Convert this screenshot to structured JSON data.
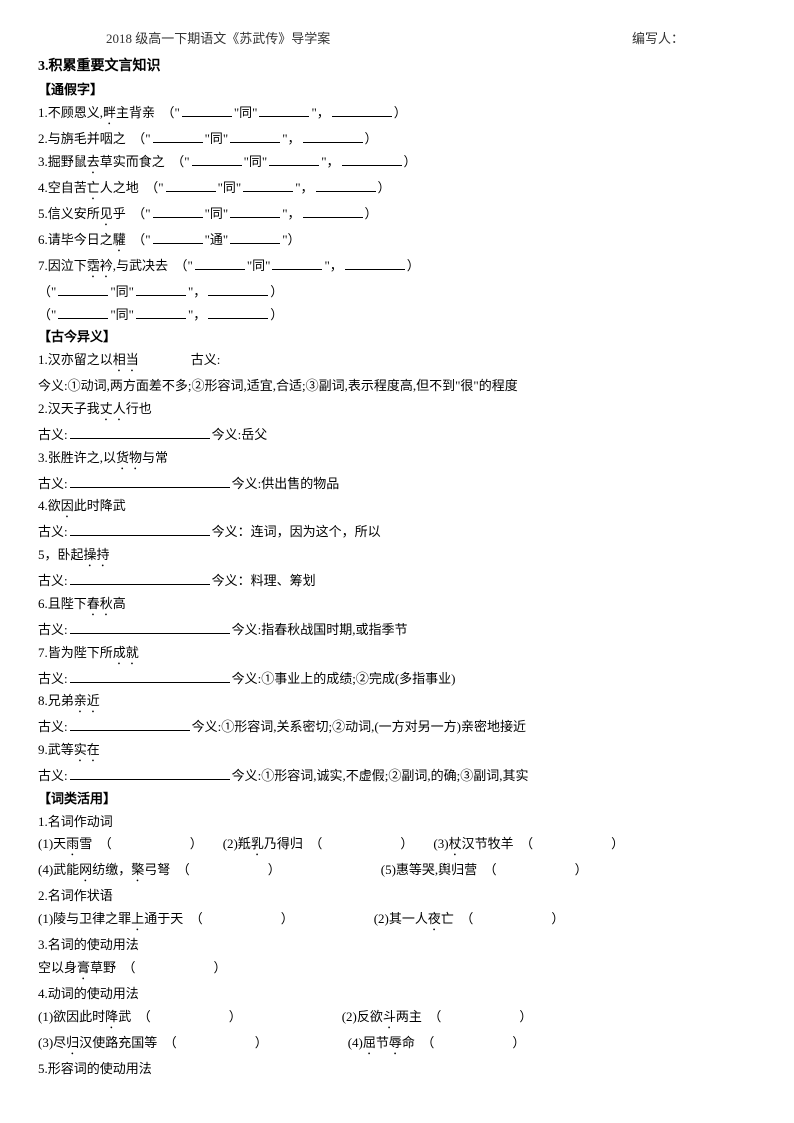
{
  "header": {
    "left": "2018 级高一下期语文《苏武传》导学案",
    "right": "编写人："
  },
  "sec3": {
    "title": "3.积累重要文言知识",
    "tongjia": {
      "tag": "【通假字】",
      "items": [
        "1.不顾恩义,<e>畔</e>主背亲　（\"______\"同\"______\"，________）",
        "2.与旃毛并咽之　（\"______\"同\"______\"，________）",
        "3.掘野鼠<e>去</e>草实而食之　（\"______\"同\"______\"，________）",
        "4.空自苦<e>亡</e>人之地　（\"______\"同\"______\"，________）",
        "5.信义安所<e>见</e>乎　（\"______\"同\"______\"，________）",
        "6.请毕今日之<e>驩</e>　（\"______\"通\"______\"）",
        "7.因泣下<e>霑衿</e>,与武决去　（\"______\"同\"______\"，________）",
        "（\"______\"同\"______\"，________）",
        "（\"______\"同\"______\"，________）"
      ]
    },
    "gujin": {
      "tag": "【古今异义】",
      "items": [
        {
          "a": "1.汉亦留之以<e>相当</e>",
          "b": "古义:"
        },
        {
          "a": "今义:①动词,两方面差不多;②形容词,适宜,合适;③副词,表示程度高,但不到\"很\"的程度"
        },
        {
          "a": "2.汉天子我<e>丈人</e>行也"
        },
        {
          "a": "古义:__________________今义:岳父"
        },
        {
          "a": "3.张胜许之,以<e>货物</e>与常"
        },
        {
          "a": "古义:____________________今义:供出售的物品"
        },
        {
          "a": "4.欲<e>因</e>此时降武"
        },
        {
          "a": "古义:__________________今义：连词，因为这个，所以"
        },
        {
          "a": "5，卧起<e>操持</e>"
        },
        {
          "a": "古义:__________________今义：料理、筹划"
        },
        {
          "a": "6.且陛下<e>春秋</e>高"
        },
        {
          "a": "古义:____________________今义:指春秋战国时期,或指季节"
        },
        {
          "a": "7.皆为陛下所<e>成就</e>"
        },
        {
          "a": "古义:____________________今义:①事业上的成绩;②完成(多指事业)"
        },
        {
          "a": "8.兄弟<e>亲近</e>"
        },
        {
          "a": "古义:________________今义:①形容词,关系密切;②动词,(一方对另一方)亲密地接近"
        },
        {
          "a": "9.武等<e>实在</e>"
        },
        {
          "a": "古义:____________________今义:①形容词,诚实,不虚假;②副词,的确;③副词,其实"
        }
      ]
    },
    "cilei": {
      "tag": "【词类活用】",
      "g1": {
        "title": "1.名词作动词",
        "rows": [
          [
            "(1)天<e>雨</e>雪　（　　　　　　）",
            "(2)羝<e>乳</e>乃得归　（　　　　　　）",
            "(3)<e>杖</e>汉节牧羊　（　　　　　　）"
          ],
          [
            "(4)武能<e>网</e>纺缴，<e>檠</e>弓弩　（　　　　　　）",
            "(5)惠等哭,舆归营　（　　　　　　）"
          ]
        ]
      },
      "g2": {
        "title": "2.名词作状语",
        "rows": [
          [
            "(1)陵与卫律之罪<e>上</e>通于天　（　　　　　　）",
            "(2)其一人<e>夜</e>亡　（　　　　　　）"
          ]
        ]
      },
      "g3": {
        "title": "3.名词的使动用法",
        "rows": [
          [
            "空以身<e>膏</e>草野　（　　　　　　）"
          ]
        ]
      },
      "g4": {
        "title": "4.动词的使动用法",
        "rows": [
          [
            "(1)欲因此时<e>降</e>武　（　　　　　　）",
            "(2)反欲<e>斗</e>两主　（　　　　　　）"
          ],
          [
            "(3)尽<e>归</e>汉使路充国等　（　　　　　　）",
            "(4)<e>屈</e>节<e>辱</e>命　（　　　　　　）"
          ]
        ]
      },
      "g5": {
        "title": "5.形容词的使动用法"
      }
    }
  }
}
